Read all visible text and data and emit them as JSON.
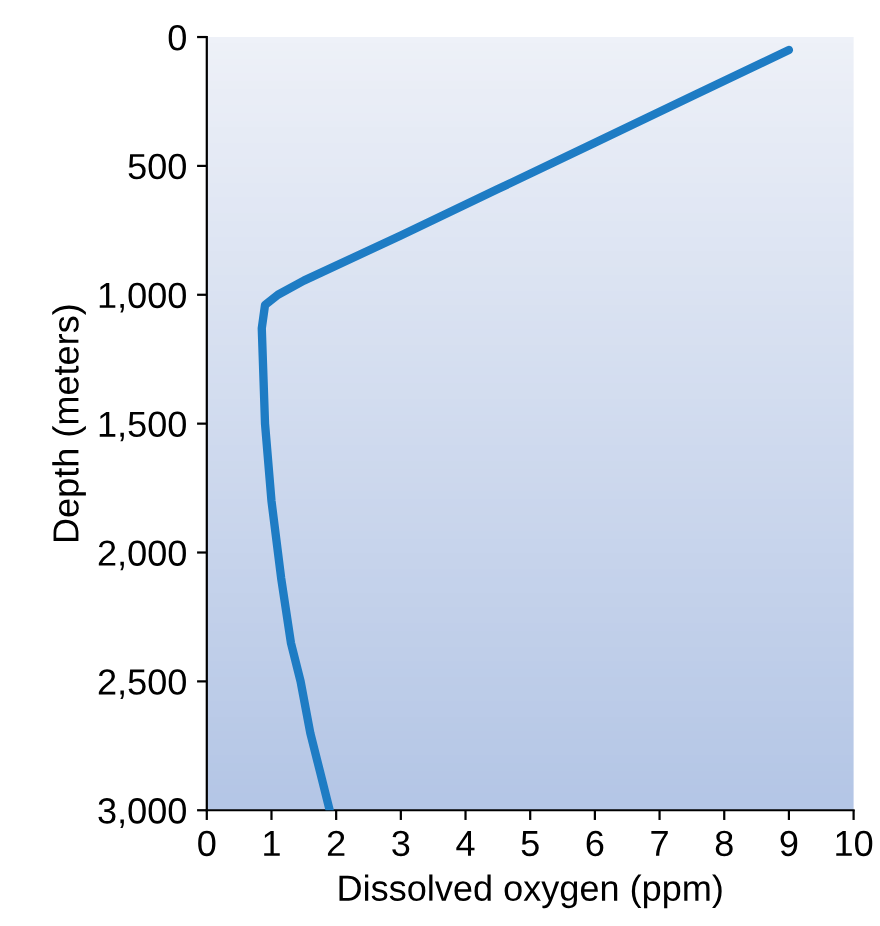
{
  "chart_data": {
    "type": "line",
    "xlabel": "Dissolved oxygen (ppm)",
    "ylabel": "Depth (meters)",
    "x": [
      9.0,
      7.5,
      6.0,
      4.5,
      3.0,
      1.5,
      1.1,
      0.9,
      0.85,
      0.9,
      1.0,
      1.15,
      1.3,
      1.45,
      1.6,
      1.75,
      1.9
    ],
    "series": [
      {
        "color": "#1e7cc4",
        "values": [
          50,
          230,
          410,
          590,
          770,
          945,
          1000,
          1040,
          1130,
          1500,
          1800,
          2100,
          2350,
          2500,
          2700,
          2850,
          3000
        ]
      }
    ],
    "xlim": [
      0,
      10
    ],
    "xticks": [
      0,
      1,
      2,
      3,
      4,
      5,
      6,
      7,
      8,
      9,
      10
    ],
    "ylim": [
      3000,
      0
    ],
    "yticks": [
      0,
      500,
      {
        "value": 1000,
        "label": "1,000"
      },
      {
        "value": 1500,
        "label": "1,500"
      },
      {
        "value": 2000,
        "label": "2,000"
      },
      {
        "value": 2500,
        "label": "2,500"
      },
      {
        "value": 3000,
        "label": "3,000"
      }
    ],
    "grid": false,
    "marker": "none",
    "line_style": "solid"
  }
}
